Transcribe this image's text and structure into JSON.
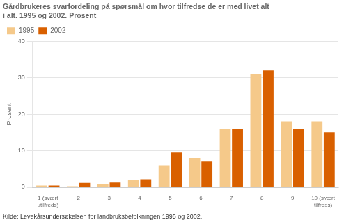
{
  "chart_data": {
    "type": "bar",
    "title": "Gårdbrukeres svarfordeling på spørsmål om hvor tilfredse de er med livet alt",
    "subtitle": "i alt. 1995 og 2002. Prosent",
    "source": "Kilde: Levekårsundersøkelsen for landbruksbefolkningen 1995 og 2002.",
    "ylabel": "Prosent",
    "categories": [
      "1 (svært\nutilfreds)",
      "2",
      "3",
      "4",
      "5",
      "6",
      "7",
      "8",
      "9",
      "10 (svært\ntilfreds)"
    ],
    "series": [
      {
        "name": "1995",
        "color": "#f5c98a",
        "values": [
          0.5,
          0.3,
          0.8,
          2.0,
          6.0,
          8.0,
          16.0,
          31.0,
          18.0,
          18.0
        ]
      },
      {
        "name": "2002",
        "color": "#d96000",
        "values": [
          0.5,
          1.2,
          1.3,
          2.2,
          9.5,
          7.0,
          16.0,
          32.0,
          16.0,
          15.0
        ]
      }
    ],
    "ylim": [
      0,
      40
    ],
    "yticks": [
      0,
      10,
      20,
      30,
      40
    ],
    "grid": true,
    "legend": "upper left"
  }
}
